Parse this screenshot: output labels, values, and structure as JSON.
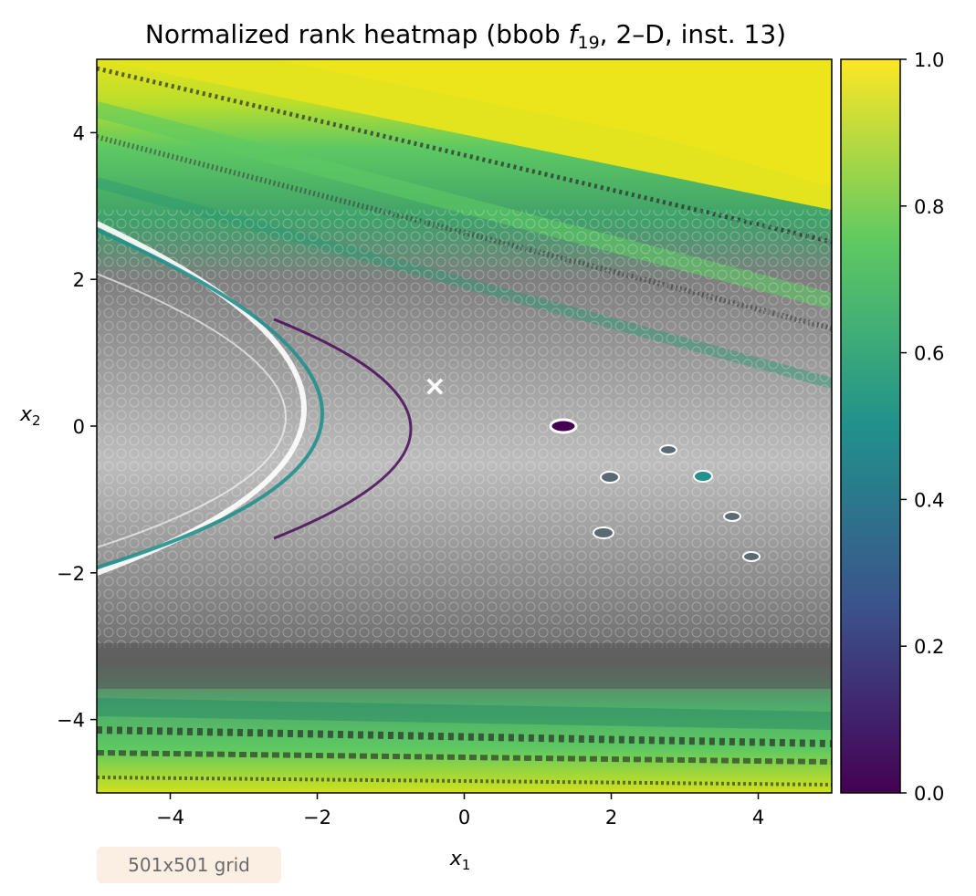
{
  "chart_data": {
    "type": "heatmap",
    "title": "Normalized rank heatmap (bbob ",
    "title_fn": "f",
    "title_sub": "19",
    "title_rest": ", 2–D, inst. 13)",
    "xlabel": "x",
    "xlabel_sub": "1",
    "ylabel": "x",
    "ylabel_sub": "2",
    "xlim": [
      -5,
      5
    ],
    "ylim": [
      -5,
      5
    ],
    "xticks": [
      -4,
      -2,
      0,
      2,
      4
    ],
    "yticks": [
      -4,
      -2,
      0,
      2,
      4
    ],
    "xtick_labels": [
      "−4",
      "−2",
      "0",
      "2",
      "4"
    ],
    "ytick_labels": [
      "−4",
      "−2",
      "0",
      "2",
      "4"
    ],
    "colorbar": {
      "range": [
        0.0,
        1.0
      ],
      "ticks": [
        0.0,
        0.2,
        0.4,
        0.6,
        0.8,
        1.0
      ],
      "tick_labels": [
        "0.0",
        "0.2",
        "0.4",
        "0.6",
        "0.8",
        "1.0"
      ],
      "colormap": "viridis",
      "stops": [
        "#440154",
        "#3b528b",
        "#21918c",
        "#5ec962",
        "#fde725"
      ]
    },
    "marker": {
      "symbol": "×",
      "x": -0.4,
      "y": 0.55,
      "color": "#ffffff"
    },
    "grid": false,
    "grid_resolution": 501
  },
  "annotation": {
    "grid_text": "501x501 grid"
  }
}
